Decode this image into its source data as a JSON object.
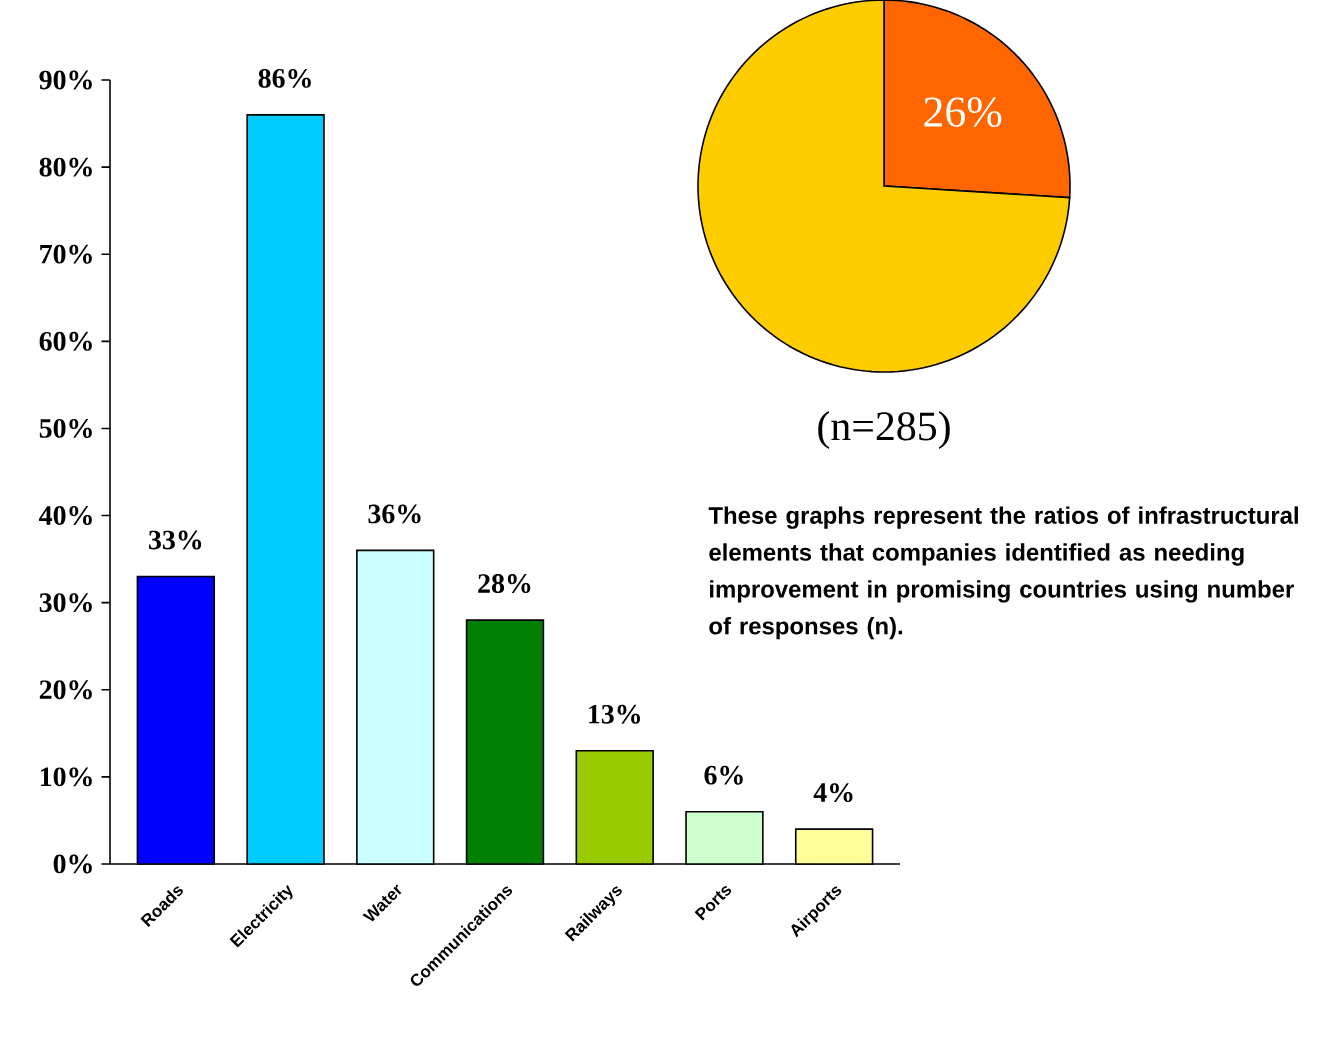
{
  "chart_data": [
    {
      "type": "bar",
      "categories": [
        "Roads",
        "Electricity",
        "Water",
        "Communications",
        "Railways",
        "Ports",
        "Airports"
      ],
      "values": [
        33,
        86,
        36,
        28,
        13,
        6,
        4
      ],
      "colors": [
        "#0000ff",
        "#00ccff",
        "#ccffff",
        "#008000",
        "#99cc00",
        "#ccffcc",
        "#ffff99"
      ],
      "value_labels": [
        "33%",
        "86%",
        "36%",
        "28%",
        "13%",
        "6%",
        "4%"
      ],
      "ylim": [
        0,
        90
      ],
      "yticks": [
        {
          "value": 0,
          "label": "0%"
        },
        {
          "value": 10,
          "label": "10%"
        },
        {
          "value": 20,
          "label": "20%"
        },
        {
          "value": 30,
          "label": "30%"
        },
        {
          "value": 40,
          "label": "40%"
        },
        {
          "value": 50,
          "label": "50%"
        },
        {
          "value": 60,
          "label": "60%"
        },
        {
          "value": 70,
          "label": "70%"
        },
        {
          "value": 80,
          "label": "80%"
        },
        {
          "value": 90,
          "label": "90%"
        }
      ]
    },
    {
      "type": "pie",
      "categories": [
        null,
        null
      ],
      "values": [
        26,
        74
      ],
      "colors": [
        "#ff6600",
        "#ffcc00"
      ],
      "value_labels": [
        "26%",
        null
      ],
      "subtitle": "(n=285)",
      "annotations": [
        "These graphs represent the ratios of infrastructural elements that companies identified as needing improvement in promising countries using number of responses (n)."
      ]
    }
  ]
}
